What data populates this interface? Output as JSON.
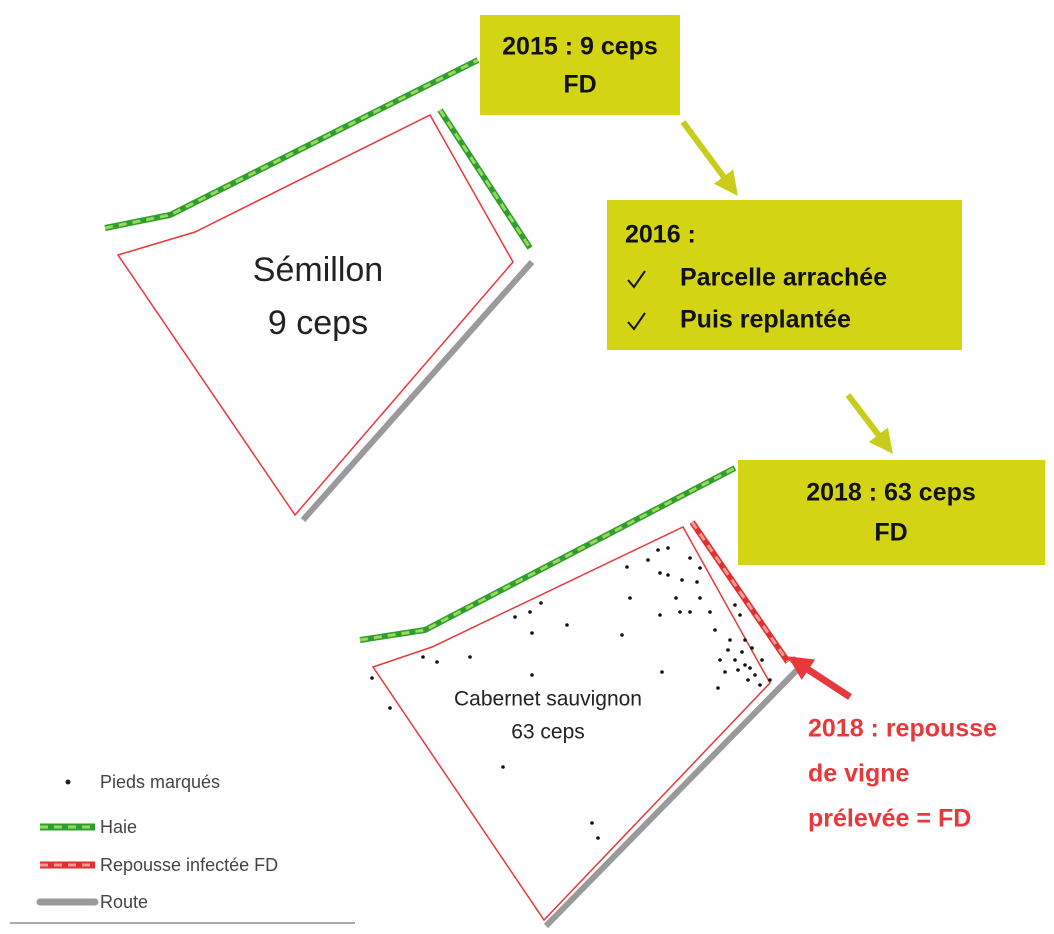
{
  "box_2015": {
    "line1": "2015 : 9 ceps",
    "line2": "FD"
  },
  "box_2016": {
    "title": "2016 :",
    "items": [
      "Parcelle arrachée",
      "Puis replantée"
    ]
  },
  "box_2018": {
    "line1": "2018 : 63 ceps",
    "line2": "FD"
  },
  "parcel_1": {
    "name": "Sémillon",
    "count": "9 ceps"
  },
  "parcel_2": {
    "name": "Cabernet sauvignon",
    "count": "63 ceps"
  },
  "annotation": [
    "2018 : repousse",
    "de vigne",
    "prélevée = FD"
  ],
  "legend": [
    "Pieds marqués",
    "Haie",
    "Repousse infectée FD",
    "Route"
  ]
}
